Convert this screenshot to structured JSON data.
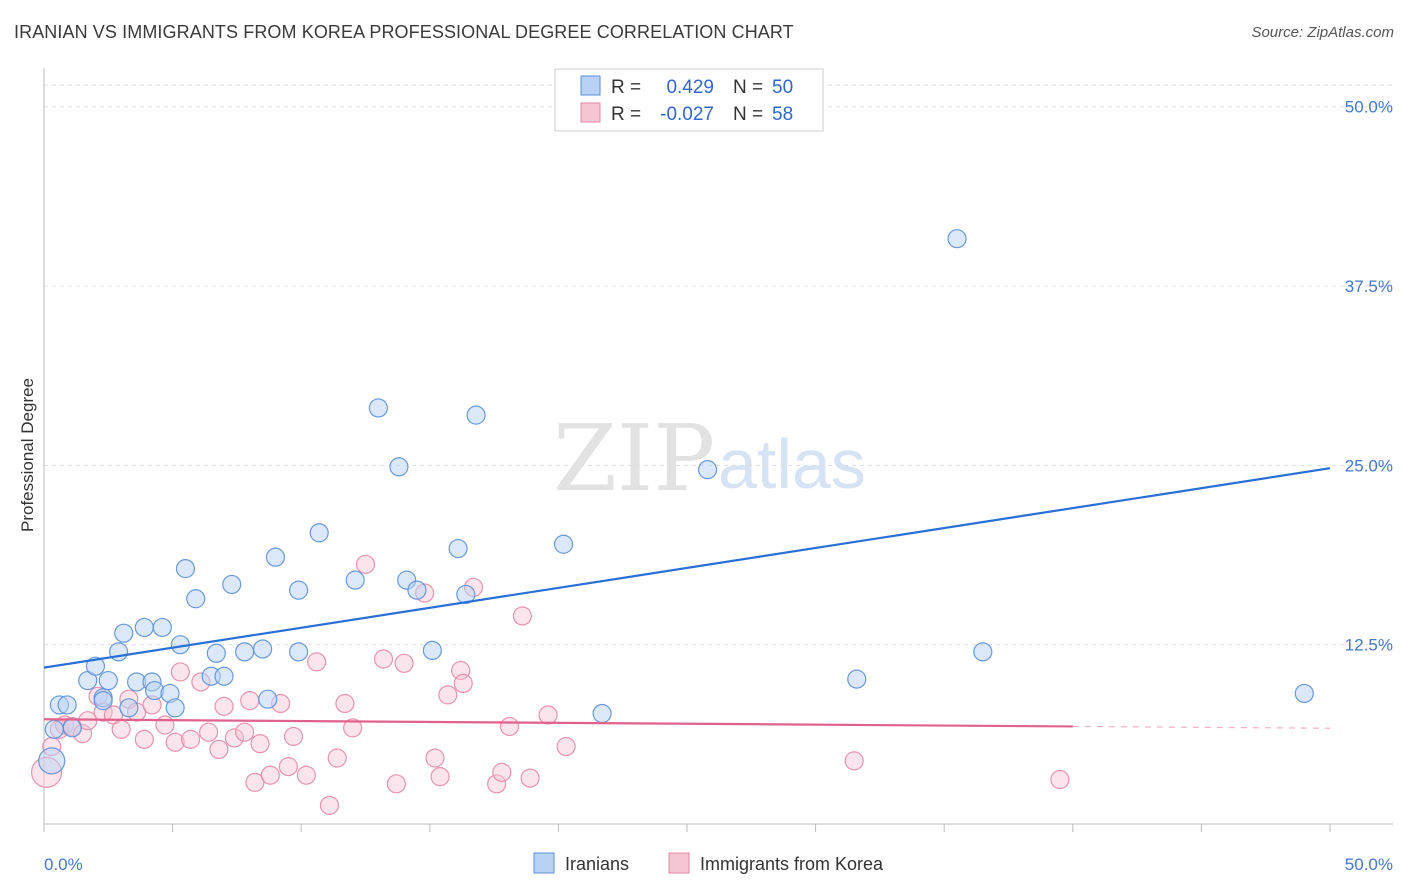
{
  "title": "IRANIAN VS IMMIGRANTS FROM KOREA PROFESSIONAL DEGREE CORRELATION CHART",
  "source": "Source: ZipAtlas.com",
  "watermark": {
    "part1": "ZIP",
    "part2": "atlas"
  },
  "colors": {
    "blue_fill": "#b8d2f5",
    "blue_stroke": "#5b8fd6",
    "blue_line": "#2970d6",
    "pink_fill": "#f7c4d3",
    "pink_stroke": "#e48aa6",
    "pink_line": "#e0628a",
    "grid": "#dddddd",
    "tick_label": "#4477cc"
  },
  "legend": {
    "rows": [
      {
        "r_label": "R =",
        "r_value": "0.429",
        "n_label": "N =",
        "n_value": "50"
      },
      {
        "r_label": "R =",
        "r_value": "-0.027",
        "n_label": "N =",
        "n_value": "58"
      }
    ]
  },
  "chart_data": {
    "type": "scatter",
    "title": "IRANIAN VS IMMIGRANTS FROM KOREA PROFESSIONAL DEGREE CORRELATION CHART",
    "xlabel": "",
    "ylabel": "Professional Degree",
    "xlim": [
      0,
      50
    ],
    "ylim": [
      0,
      52
    ],
    "x_tick_labels": {
      "left": "0.0%",
      "right": "50.0%"
    },
    "y_ticks": [
      {
        "value": 12.5,
        "label": "12.5%"
      },
      {
        "value": 25.0,
        "label": "25.0%"
      },
      {
        "value": 37.5,
        "label": "37.5%"
      },
      {
        "value": 50.0,
        "label": "50.0%"
      }
    ],
    "series": [
      {
        "name": "Iranians",
        "color": "#b8d2f5",
        "trend": {
          "x0": 0,
          "y0": 10.9,
          "x1": 50,
          "y1": 24.8
        },
        "points": [
          [
            0.3,
            4.4
          ],
          [
            0.4,
            6.6
          ],
          [
            0.6,
            8.3
          ],
          [
            0.9,
            8.3
          ],
          [
            1.1,
            6.7
          ],
          [
            1.7,
            10.0
          ],
          [
            2.0,
            11.0
          ],
          [
            2.3,
            8.8
          ],
          [
            2.3,
            8.6
          ],
          [
            2.5,
            10.0
          ],
          [
            2.9,
            12.0
          ],
          [
            3.1,
            13.3
          ],
          [
            3.3,
            8.1
          ],
          [
            3.6,
            9.9
          ],
          [
            3.9,
            13.7
          ],
          [
            4.2,
            9.9
          ],
          [
            4.3,
            9.3
          ],
          [
            4.6,
            13.7
          ],
          [
            4.9,
            9.1
          ],
          [
            5.1,
            8.1
          ],
          [
            5.3,
            12.5
          ],
          [
            5.5,
            17.8
          ],
          [
            5.9,
            15.7
          ],
          [
            6.5,
            10.3
          ],
          [
            6.7,
            11.9
          ],
          [
            7.0,
            10.3
          ],
          [
            7.3,
            16.7
          ],
          [
            7.8,
            12.0
          ],
          [
            8.5,
            12.2
          ],
          [
            8.7,
            8.7
          ],
          [
            9.0,
            18.6
          ],
          [
            9.9,
            16.3
          ],
          [
            9.9,
            12.0
          ],
          [
            10.7,
            20.3
          ],
          [
            12.1,
            17.0
          ],
          [
            13.0,
            29.0
          ],
          [
            13.8,
            24.9
          ],
          [
            14.1,
            17.0
          ],
          [
            14.5,
            16.3
          ],
          [
            15.1,
            12.1
          ],
          [
            16.1,
            19.2
          ],
          [
            16.4,
            16.0
          ],
          [
            16.8,
            28.5
          ],
          [
            20.2,
            19.5
          ],
          [
            21.7,
            7.7
          ],
          [
            25.8,
            24.7
          ],
          [
            31.6,
            10.1
          ],
          [
            35.5,
            40.8
          ],
          [
            36.5,
            12.0
          ],
          [
            49.0,
            9.1
          ]
        ]
      },
      {
        "name": "Immigrants from Korea",
        "color": "#f7c4d3",
        "trend": {
          "x0": 0,
          "y0": 7.3,
          "x1": 40,
          "y1": 6.8
        },
        "points": [
          [
            0.1,
            3.6
          ],
          [
            0.3,
            5.4
          ],
          [
            0.6,
            6.6
          ],
          [
            0.8,
            6.9
          ],
          [
            1.1,
            6.8
          ],
          [
            1.5,
            6.3
          ],
          [
            1.7,
            7.2
          ],
          [
            2.1,
            8.9
          ],
          [
            2.3,
            7.8
          ],
          [
            2.7,
            7.6
          ],
          [
            3.0,
            6.6
          ],
          [
            3.3,
            8.7
          ],
          [
            3.6,
            7.8
          ],
          [
            3.9,
            5.9
          ],
          [
            4.2,
            8.3
          ],
          [
            4.7,
            6.9
          ],
          [
            5.1,
            5.7
          ],
          [
            5.3,
            10.6
          ],
          [
            5.7,
            5.9
          ],
          [
            6.1,
            9.9
          ],
          [
            6.4,
            6.4
          ],
          [
            6.8,
            5.2
          ],
          [
            7.0,
            8.2
          ],
          [
            7.4,
            6.0
          ],
          [
            7.8,
            6.4
          ],
          [
            8.0,
            8.6
          ],
          [
            8.2,
            2.9
          ],
          [
            8.4,
            5.6
          ],
          [
            8.8,
            3.4
          ],
          [
            9.2,
            8.4
          ],
          [
            9.5,
            4.0
          ],
          [
            9.7,
            6.1
          ],
          [
            10.2,
            3.4
          ],
          [
            10.6,
            11.3
          ],
          [
            11.1,
            1.3
          ],
          [
            11.4,
            4.6
          ],
          [
            11.7,
            8.4
          ],
          [
            12.0,
            6.7
          ],
          [
            12.5,
            18.1
          ],
          [
            13.2,
            11.5
          ],
          [
            13.7,
            2.8
          ],
          [
            14.0,
            11.2
          ],
          [
            14.8,
            16.1
          ],
          [
            15.2,
            4.6
          ],
          [
            15.4,
            3.3
          ],
          [
            15.7,
            9.0
          ],
          [
            16.2,
            10.7
          ],
          [
            16.3,
            9.8
          ],
          [
            16.7,
            16.5
          ],
          [
            17.6,
            2.8
          ],
          [
            17.8,
            3.6
          ],
          [
            18.1,
            6.8
          ],
          [
            18.6,
            14.5
          ],
          [
            18.9,
            3.2
          ],
          [
            19.6,
            7.6
          ],
          [
            20.3,
            5.4
          ],
          [
            31.5,
            4.4
          ],
          [
            39.5,
            3.1
          ]
        ]
      }
    ]
  },
  "bottom_legend": {
    "items": [
      {
        "label": "Iranians"
      },
      {
        "label": "Immigrants from Korea"
      }
    ]
  }
}
